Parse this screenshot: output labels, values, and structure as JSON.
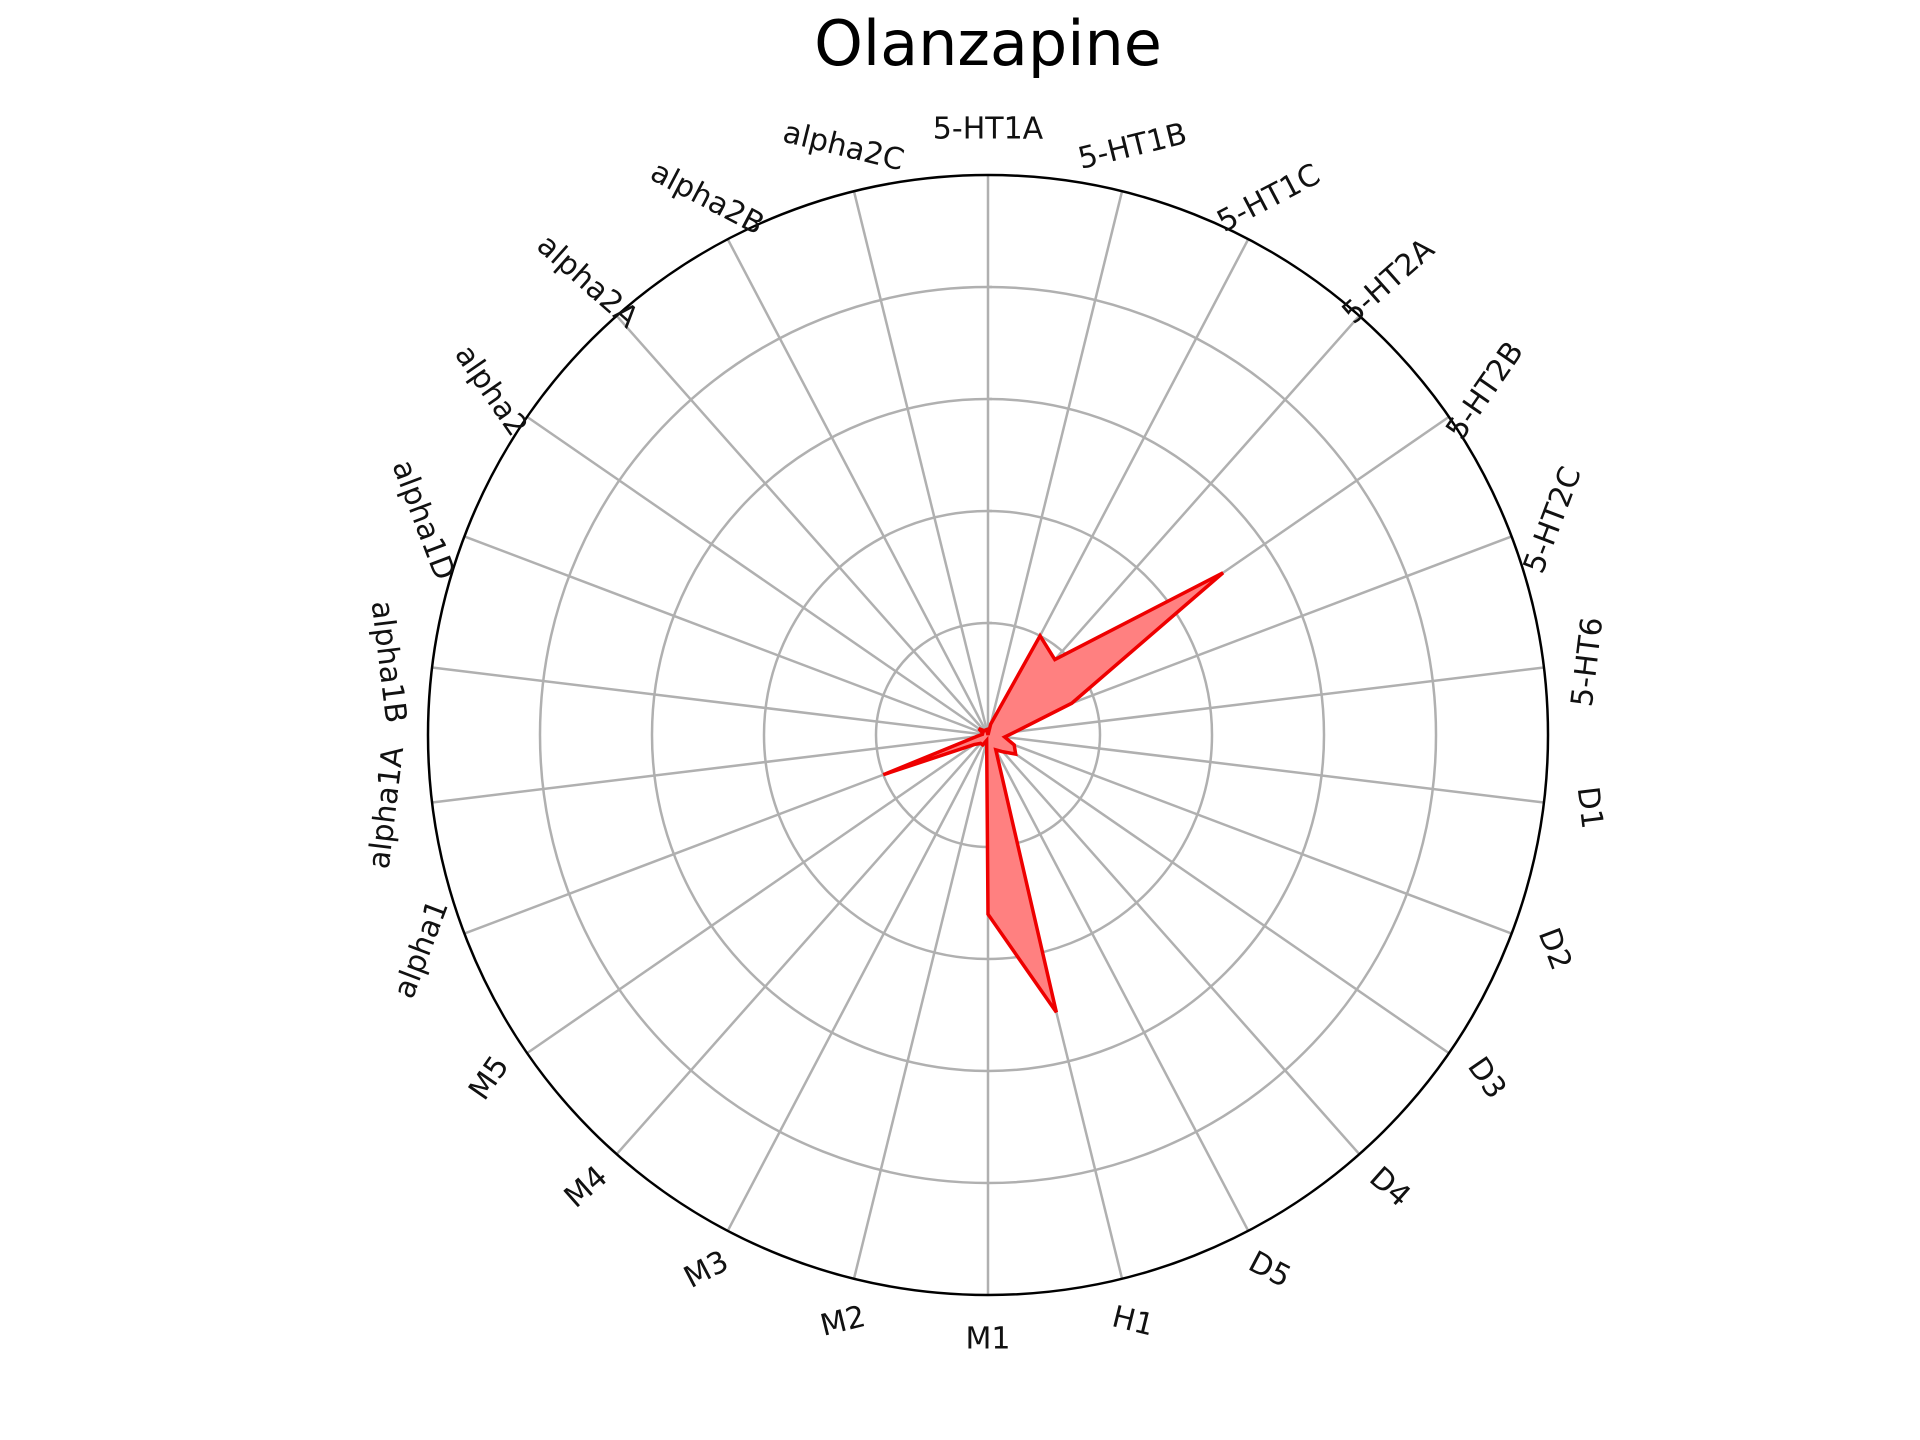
{
  "chart_data": {
    "type": "radar",
    "title": "Olanzapine",
    "categories": [
      "5-HT1A",
      "5-HT1B",
      "5-HT1C",
      "5-HT2A",
      "5-HT2B",
      "5-HT2C",
      "5-HT6",
      "D1",
      "D2",
      "D3",
      "D4",
      "D5",
      "H1",
      "M1",
      "M2",
      "M3",
      "M4",
      "M5",
      "alpha1",
      "alpha1A",
      "alpha1B",
      "alpha1D",
      "alpha2",
      "alpha2A",
      "alpha2B",
      "alpha2C"
    ],
    "series": [
      {
        "values": [
          0.0,
          0.02,
          0.2,
          0.18,
          0.51,
          0.16,
          0.05,
          0.03,
          0.05,
          0.06,
          0.04,
          0.03,
          0.51,
          0.32,
          0.01,
          0.02,
          0.02,
          0.03,
          0.2,
          0.02,
          0.01,
          0.01,
          0.02,
          0.01,
          0.01,
          0.01
        ],
        "color": "#ee0000",
        "fill": "#ff8080"
      }
    ],
    "ylim": [
      0,
      1
    ],
    "rings": [
      0.2,
      0.4,
      0.6,
      0.8,
      1.0
    ],
    "grid": true,
    "legend": "none"
  }
}
